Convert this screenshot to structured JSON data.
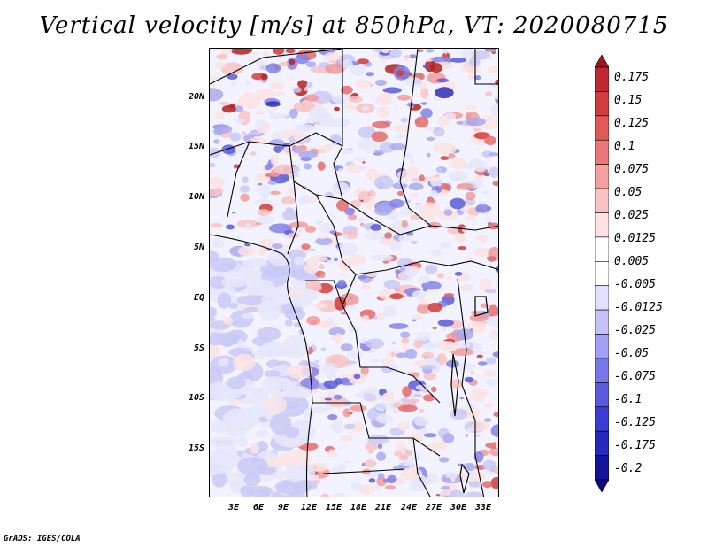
{
  "title": "Vertical velocity [m/s] at 850hPa, VT: 2020080715",
  "footer": "GrADS: IGES/COLA",
  "map": {
    "region": "Central Africa",
    "variable": "Vertical velocity",
    "units": "m/s",
    "level": "850hPa",
    "valid_time": "2020080715",
    "lat_ticks": [
      "20N",
      "15N",
      "10N",
      "5N",
      "EQ",
      "5S",
      "10S",
      "15S"
    ],
    "lon_ticks": [
      "3E",
      "6E",
      "9E",
      "12E",
      "15E",
      "18E",
      "21E",
      "24E",
      "27E",
      "30E",
      "33E"
    ]
  },
  "legend": {
    "labels": [
      "0.175",
      "0.15",
      "0.125",
      "0.1",
      "0.075",
      "0.05",
      "0.025",
      "0.0125",
      "0.005",
      "-0.005",
      "-0.0125",
      "-0.025",
      "-0.05",
      "-0.075",
      "-0.1",
      "-0.125",
      "-0.175",
      "-0.2"
    ],
    "colors": [
      "#a0141e",
      "#be2832",
      "#d23c3c",
      "#e15a5a",
      "#eb7878",
      "#f5a0a0",
      "#fac3c3",
      "#fde1e1",
      "#ffffff",
      "#ffffff",
      "#e1e1fd",
      "#c3c3fa",
      "#a0a0f5",
      "#7878eb",
      "#5a5ae1",
      "#3c3cd2",
      "#2828be",
      "#14149b",
      "#0a0a82"
    ]
  }
}
